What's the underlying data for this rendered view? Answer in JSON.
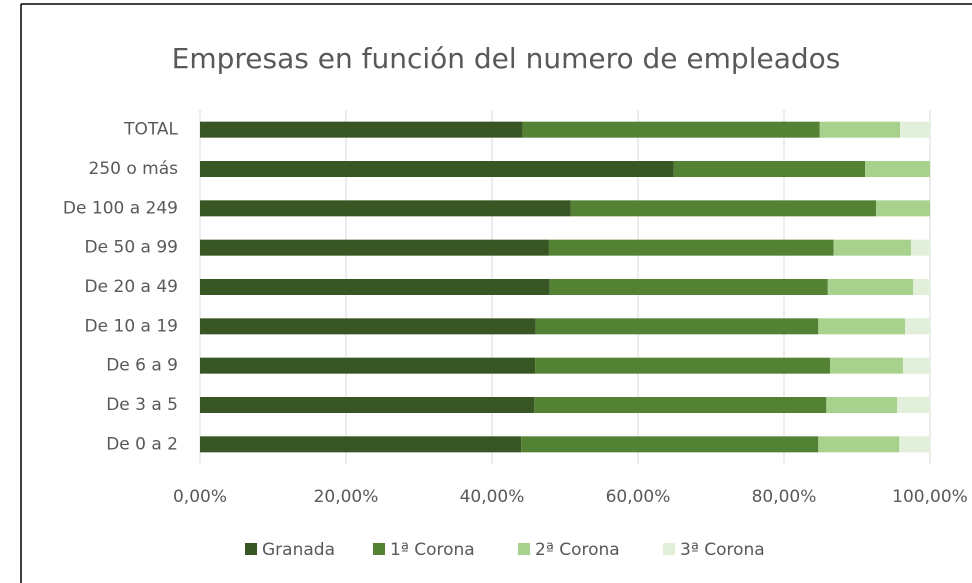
{
  "chart_data": {
    "type": "stacked_bar_horizontal",
    "title": "Empresas en función del numero de empleados",
    "categories": [
      "TOTAL",
      "250 o más",
      "De 100 a 249",
      "De 50 a 99",
      "De 20 a 49",
      "De 10 a 19",
      "De 6 a 9",
      "De 3 a 5",
      "De 0 a 2"
    ],
    "series": [
      {
        "name": "Granada",
        "color": "#375623",
        "values": [
          44.2,
          64.9,
          50.8,
          47.8,
          47.9,
          46.0,
          45.9,
          45.8,
          44.0
        ]
      },
      {
        "name": "1ª Corona",
        "color": "#548235",
        "values": [
          40.7,
          26.2,
          41.8,
          39.0,
          38.1,
          38.7,
          40.4,
          40.0,
          40.7
        ]
      },
      {
        "name": "2ª Corona",
        "color": "#a9d18e",
        "values": [
          11.0,
          8.9,
          7.4,
          10.6,
          11.7,
          11.9,
          10.0,
          9.7,
          11.1
        ]
      },
      {
        "name": "3ª Corona",
        "color": "#e2efda",
        "values": [
          4.1,
          0,
          0,
          2.6,
          2.3,
          3.4,
          3.7,
          4.5,
          4.2
        ]
      }
    ],
    "xlim": [
      0,
      100
    ],
    "xticks": [
      {
        "value": 0,
        "label": "0,00%"
      },
      {
        "value": 20,
        "label": "20,00%"
      },
      {
        "value": 40,
        "label": "40,00%"
      },
      {
        "value": 60,
        "label": "60,00%"
      },
      {
        "value": 80,
        "label": "80,00%"
      },
      {
        "value": 100,
        "label": "100,00%"
      }
    ],
    "grid": true,
    "legend": "bottom"
  }
}
